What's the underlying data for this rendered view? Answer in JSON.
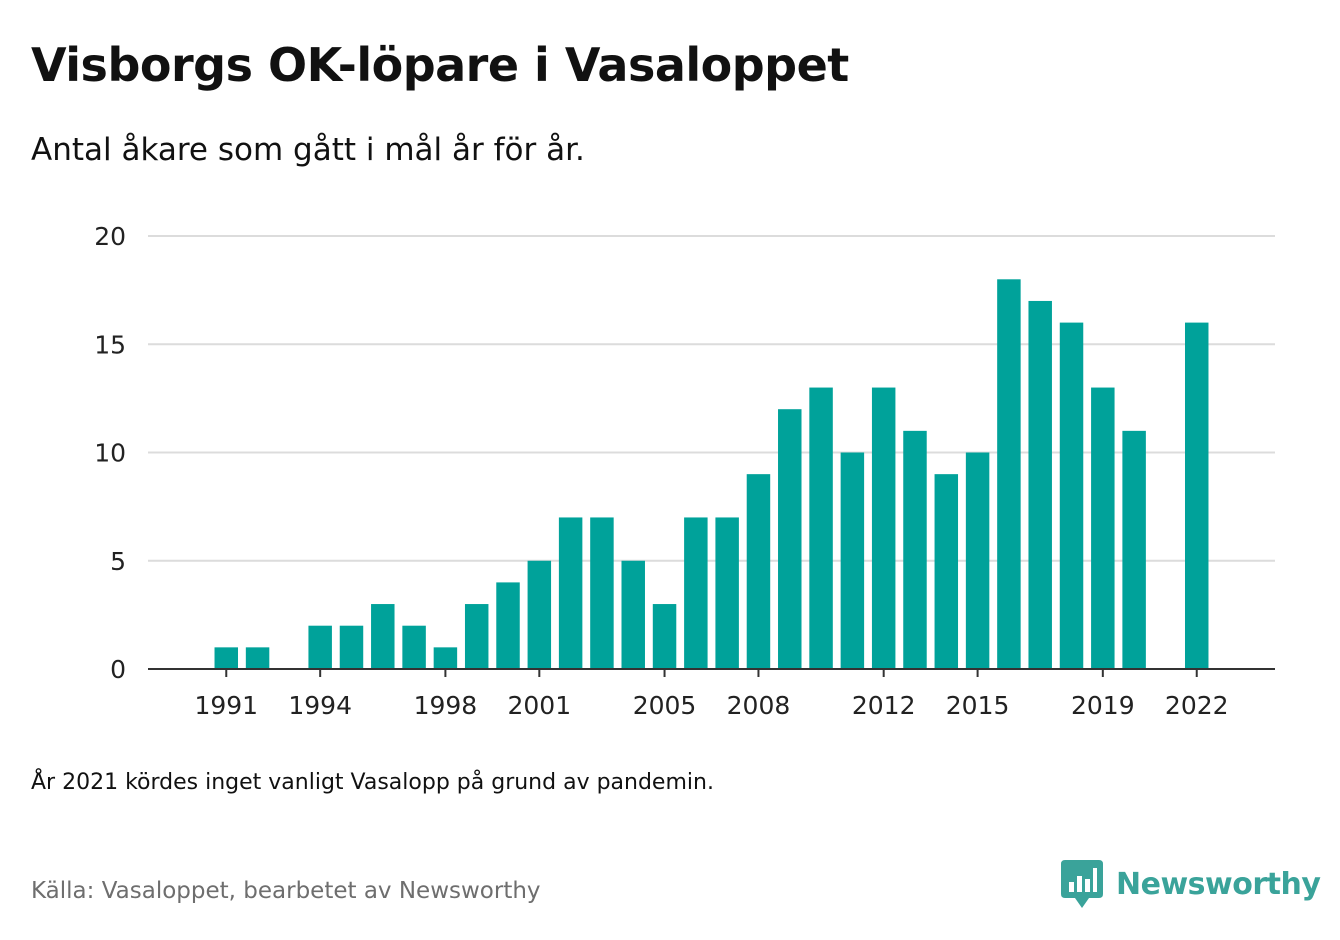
{
  "title": "Visborgs OK-löpare i Vasaloppet",
  "subtitle": "Antal åkare som gått i mål år för år.",
  "note": "År 2021 kördes inget vanligt Vasalopp på grund av pandemin.",
  "source": "Källa: Vasaloppet, bearbetet av Newsworthy",
  "brand": {
    "name": "Newsworthy",
    "icon": "newsworthy-logo-icon",
    "color": "#3aa39a"
  },
  "colors": {
    "bar": "#00a29a",
    "grid": "#dcdcdc",
    "axis": "#333333",
    "tick_label": "#222222"
  },
  "chart_data": {
    "type": "bar",
    "x": [
      1989,
      1990,
      1991,
      1992,
      1993,
      1994,
      1995,
      1996,
      1997,
      1998,
      1999,
      2000,
      2001,
      2002,
      2003,
      2004,
      2005,
      2006,
      2007,
      2008,
      2009,
      2010,
      2011,
      2012,
      2013,
      2014,
      2015,
      2016,
      2017,
      2018,
      2019,
      2020,
      2021,
      2022
    ],
    "values": [
      null,
      null,
      1,
      1,
      null,
      2,
      2,
      3,
      2,
      1,
      3,
      4,
      5,
      7,
      7,
      5,
      3,
      7,
      7,
      9,
      12,
      13,
      10,
      13,
      11,
      9,
      10,
      18,
      17,
      16,
      13,
      11,
      null,
      16
    ],
    "xlim": [
      1988.5,
      2024.5
    ],
    "x_ticks": [
      1991,
      1994,
      1998,
      2001,
      2005,
      2008,
      2012,
      2015,
      2019,
      2022
    ],
    "x_tick_labels": [
      "1991",
      "1994",
      "1998",
      "2001",
      "2005",
      "2008",
      "2012",
      "2015",
      "2019",
      "2022"
    ],
    "ylim": [
      0,
      20
    ],
    "y_ticks": [
      0,
      5,
      10,
      15,
      20
    ],
    "y_tick_labels": [
      "0",
      "5",
      "10",
      "15",
      "20"
    ],
    "grid": true,
    "legend": false
  }
}
